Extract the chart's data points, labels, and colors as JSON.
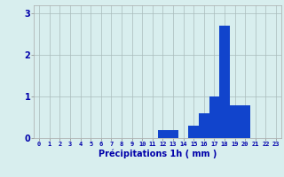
{
  "hours": [
    0,
    1,
    2,
    3,
    4,
    5,
    6,
    7,
    8,
    9,
    10,
    11,
    12,
    13,
    14,
    15,
    16,
    17,
    18,
    19,
    20,
    21,
    22,
    23
  ],
  "values": [
    0,
    0,
    0,
    0,
    0,
    0,
    0,
    0,
    0,
    0,
    0,
    0,
    0.2,
    0.2,
    0,
    0.3,
    0.6,
    1.0,
    2.7,
    0.8,
    0.8,
    0,
    0,
    0
  ],
  "bar_color": "#1144cc",
  "background_color": "#d8eeee",
  "grid_color": "#aabbbb",
  "xlabel": "Précipitations 1h ( mm )",
  "xlabel_color": "#0000aa",
  "tick_color": "#0000aa",
  "ylim": [
    0,
    3.2
  ],
  "yticks": [
    0,
    1,
    2,
    3
  ],
  "xlim": [
    -0.5,
    23.5
  ],
  "tick_fontsize": 5.0,
  "ylabel_fontsize": 7.0,
  "ytick_fontsize": 7.0
}
